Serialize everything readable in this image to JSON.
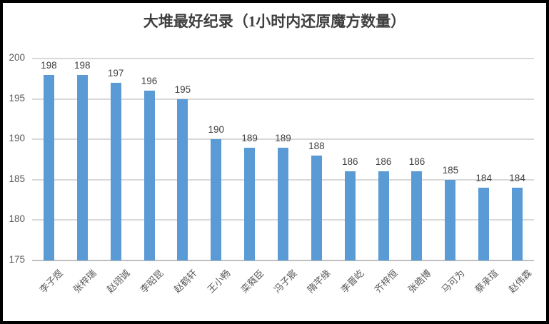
{
  "chart_data": {
    "type": "bar",
    "title": "大堆最好纪录（1小时内还原魔方数量）",
    "categories": [
      "李子煜",
      "张梓瑞",
      "赵翊诚",
      "李昭昆",
      "赵鹤轩",
      "王小畅",
      "栾蕤臣",
      "冯子宸",
      "隋芊缘",
      "李晋屹",
      "齐梓恒",
      "张皓博",
      "马可为",
      "蔡承瑄",
      "赵伟霖"
    ],
    "values": [
      198,
      198,
      197,
      196,
      195,
      190,
      189,
      189,
      188,
      186,
      186,
      186,
      185,
      184,
      184
    ],
    "data_labels_shown": true,
    "xlabel": "",
    "ylabel": "",
    "ylim": [
      175,
      200
    ],
    "yticks": [
      175,
      180,
      185,
      190,
      195,
      200
    ],
    "grid": "horizontal",
    "legend_position": "none",
    "bar_color": "#5B9BD5",
    "gridline_color": "#D9D9D9",
    "axis_line_color": "#BFBFBF",
    "tick_label_color": "#595959",
    "value_label_color": "#404040",
    "title_color": "#3F3F3F",
    "frame_border_color": "#000000"
  }
}
